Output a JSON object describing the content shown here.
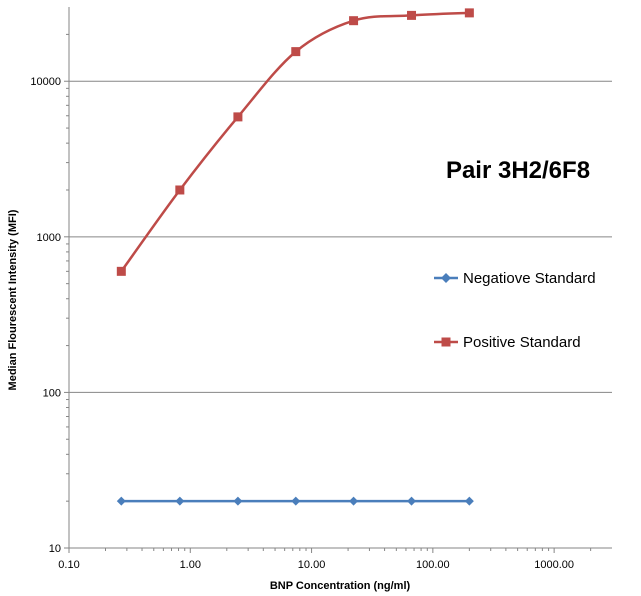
{
  "chart_data": {
    "type": "line",
    "title": "Pair 3H2/6F8",
    "xlabel": "BNP Concentration (ng/ml)",
    "ylabel": "Median Flourescent Intensity (MFI)",
    "x_scale": "log",
    "y_scale": "log",
    "xlim": [
      0.1,
      3000
    ],
    "ylim": [
      10,
      30000
    ],
    "x_ticks": [
      0.1,
      1,
      10,
      100,
      1000
    ],
    "x_tick_labels": [
      "0.10",
      "1.00",
      "10.00",
      "100.00",
      "1000.00"
    ],
    "y_ticks": [
      10,
      100,
      1000,
      10000
    ],
    "y_tick_labels": [
      "10",
      "100",
      "1000",
      "10000"
    ],
    "grid": "horizontal major",
    "legend_position": "right",
    "x": [
      0.27,
      0.82,
      2.47,
      7.41,
      22.2,
      66.7,
      200
    ],
    "series": [
      {
        "name": "Negatiove Standard",
        "color": "#4a7ebb",
        "marker": "diamond",
        "values": [
          20,
          20,
          20,
          20,
          20,
          20,
          20
        ]
      },
      {
        "name": "Positive Standard",
        "color": "#be4b48",
        "marker": "square",
        "values": [
          600,
          2000,
          5900,
          15500,
          24500,
          26500,
          27500
        ]
      }
    ]
  }
}
